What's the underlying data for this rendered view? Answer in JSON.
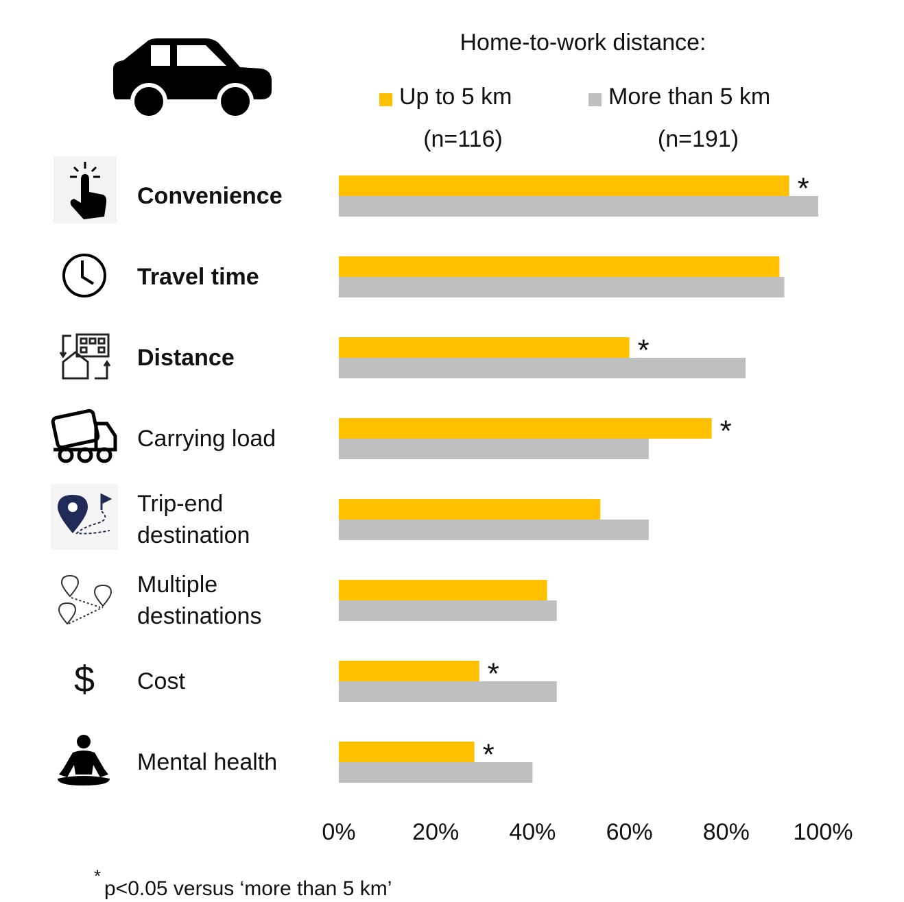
{
  "chart_data": {
    "type": "bar",
    "orientation": "horizontal",
    "legend_title": "Home-to-work  distance:",
    "categories": [
      "Convenience",
      "Travel time",
      "Distance",
      "Carrying load",
      "Trip-end destination",
      "Multiple destinations",
      "Cost",
      "Mental health"
    ],
    "emphasis": [
      true,
      true,
      true,
      false,
      false,
      false,
      false,
      false
    ],
    "series": [
      {
        "name": "Up to 5 km",
        "sample": "(n=116)",
        "color": "#ffc000",
        "values": [
          93,
          91,
          60,
          77,
          54,
          43,
          29,
          28
        ]
      },
      {
        "name": "More than 5 km",
        "sample": "(n=191)",
        "color": "#bfbfbf",
        "values": [
          99,
          92,
          84,
          64,
          64,
          45,
          45,
          40
        ]
      }
    ],
    "significance": [
      "*",
      null,
      "*",
      "*",
      null,
      null,
      "*",
      "*"
    ],
    "xlim": [
      0,
      100
    ],
    "xticks": [
      {
        "value": 0,
        "label": "0%"
      },
      {
        "value": 20,
        "label": "20%"
      },
      {
        "value": 40,
        "label": "40%"
      },
      {
        "value": 60,
        "label": "60%"
      },
      {
        "value": 80,
        "label": "80%"
      },
      {
        "value": 100,
        "label": "100%"
      }
    ],
    "grid": false,
    "footnote_marker": "*",
    "footnote": "p<0.05 versus ‘more than 5 km’"
  }
}
